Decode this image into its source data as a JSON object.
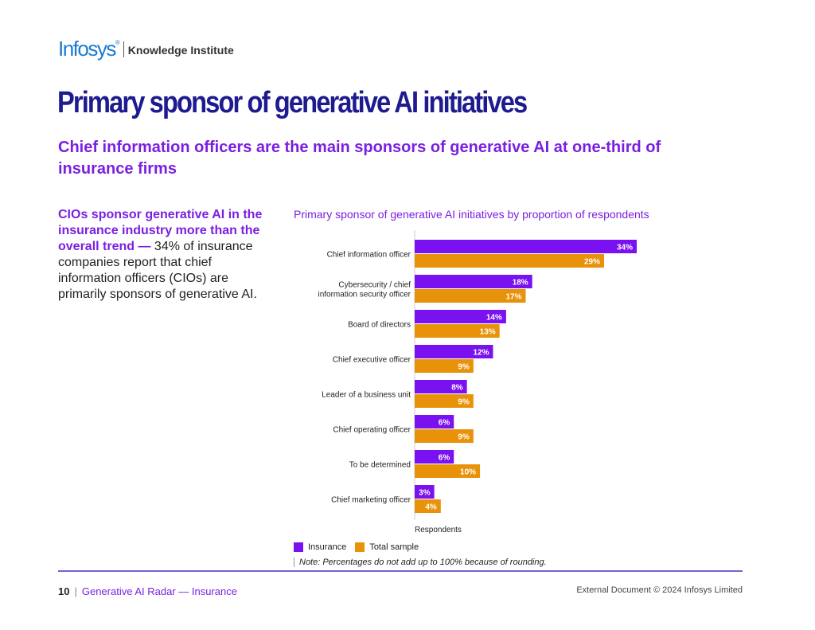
{
  "brand": {
    "logo_text": "Infosys",
    "logo_mark": "®",
    "institute": "Knowledge Institute"
  },
  "page_title": "Primary sponsor of generative AI initiatives",
  "subtitle": "Chief information officers are the main sponsors of generative AI at one-third of insurance firms",
  "side": {
    "highlight": "CIOs sponsor generative AI in the insurance industry more than the overall trend —",
    "body": " 34% of insurance companies report that chief information officers (CIOs) are primarily sponsors of generative AI."
  },
  "colors": {
    "insurance": "#7a11f0",
    "total": "#e8920a",
    "title": "#1e1b8f",
    "accent": "#7a1fe0"
  },
  "chart_data": {
    "type": "bar",
    "orientation": "horizontal",
    "title": "Primary sponsor of generative AI initiatives by proportion of respondents",
    "xlabel": "Respondents",
    "ylabel": "",
    "xlim": [
      0,
      40
    ],
    "categories": [
      [
        "Chief information officer"
      ],
      [
        "Cybersecurity / chief",
        "information security officer"
      ],
      [
        "Board of directors"
      ],
      [
        "Chief executive officer"
      ],
      [
        "Leader of a business unit"
      ],
      [
        "Chief operating officer"
      ],
      [
        "To be determined"
      ],
      [
        "Chief marketing officer"
      ]
    ],
    "series": [
      {
        "name": "Insurance",
        "values": [
          34,
          18,
          14,
          12,
          8,
          6,
          6,
          3
        ]
      },
      {
        "name": "Total sample",
        "values": [
          29,
          17,
          13,
          9,
          9,
          9,
          10,
          4
        ]
      }
    ],
    "value_suffix": "%",
    "legend": "bottom-left"
  },
  "note": "Note: Percentages do not add up to 100% because of rounding.",
  "footer": {
    "page_number": "10",
    "separator": "|",
    "doc_name": "Generative AI Radar — Insurance",
    "copyright": "External Document © 2024 Infosys Limited"
  }
}
